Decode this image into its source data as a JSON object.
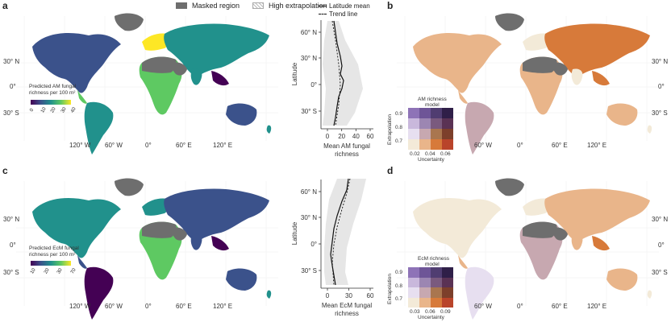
{
  "legend": {
    "masked": "Masked region",
    "extrapolation": "High extrapolation",
    "colors": {
      "masked": "#6e6e6e",
      "extrapolation_hatch": "#bbbbbb"
    }
  },
  "panels": {
    "a": {
      "letter": "a",
      "title_line1": "Predicted AM fungal",
      "title_line2": "richness per 100 m²",
      "ticks": [
        "0",
        "10",
        "20",
        "30",
        "40"
      ],
      "lat_labels": [
        "30° N",
        "0°",
        "30° S"
      ],
      "lon_labels": [
        "120° W",
        "60° W",
        "0°",
        "60° E",
        "120° E"
      ]
    },
    "b": {
      "letter": "b",
      "legend_title_line1": "AM richness",
      "legend_title_line2": "model",
      "y_label": "Extrapolation",
      "y_ticks": [
        "0.9",
        "0.8",
        "0.7"
      ],
      "x_ticks": [
        "0.02",
        "0.04",
        "0.06"
      ],
      "x_label": "Uncertainty",
      "lat_labels": [
        "30° N",
        "0°",
        "30° S"
      ],
      "lon_labels": [
        "60° W",
        "0°",
        "60° E",
        "120° E"
      ]
    },
    "c": {
      "letter": "c",
      "title_line1": "Predicted EcM fungal",
      "title_line2": "richness per 100 m²",
      "ticks": [
        "10",
        "20",
        "30",
        "70"
      ],
      "lat_labels": [
        "30° N",
        "0°",
        "30° S"
      ],
      "lon_labels": [
        "120° W",
        "60° W",
        "0°",
        "60° E",
        "120° E"
      ]
    },
    "d": {
      "letter": "d",
      "legend_title_line1": "EcM richness",
      "legend_title_line2": "model",
      "y_label": "Extrapolation",
      "y_ticks": [
        "0.9",
        "0.8",
        "0.7"
      ],
      "x_ticks": [
        "0.03",
        "0.06",
        "0.09"
      ],
      "x_label": "Uncertainty",
      "lat_labels": [
        "30° N",
        "0°",
        "30° S"
      ],
      "lon_labels": [
        "60° W",
        "0°",
        "60° E",
        "120° E"
      ]
    }
  },
  "lat_plot": {
    "legend_mean": "Latitude mean",
    "legend_trend": "Trend line",
    "y_label": "Latitude",
    "top": {
      "y_ticks": [
        "60° N",
        "30° N",
        "0°",
        "30° S"
      ],
      "x_ticks": [
        "0",
        "20",
        "40",
        "60"
      ],
      "x_label_line1": "Mean AM fungal",
      "x_label_line2": "richness"
    },
    "bottom": {
      "y_ticks": [
        "60° N",
        "30° N",
        "0°",
        "30° S"
      ],
      "x_ticks": [
        "0",
        "30",
        "60"
      ],
      "x_label_line1": "Mean EcM fungal",
      "x_label_line2": "richness"
    }
  },
  "viridis": [
    "#440154",
    "#3b528b",
    "#21918c",
    "#5ec962",
    "#fde725"
  ],
  "bivariate": [
    "#f3ead8",
    "#e9b58a",
    "#d77a3a",
    "#b9442a",
    "#e7dff0",
    "#c7a8b0",
    "#a9764f",
    "#7c3f2b",
    "#c9b8dc",
    "#9c86b2",
    "#7a5a7e",
    "#5a3254",
    "#8e73b7",
    "#6e5597",
    "#503d71",
    "#2f1f48"
  ]
}
